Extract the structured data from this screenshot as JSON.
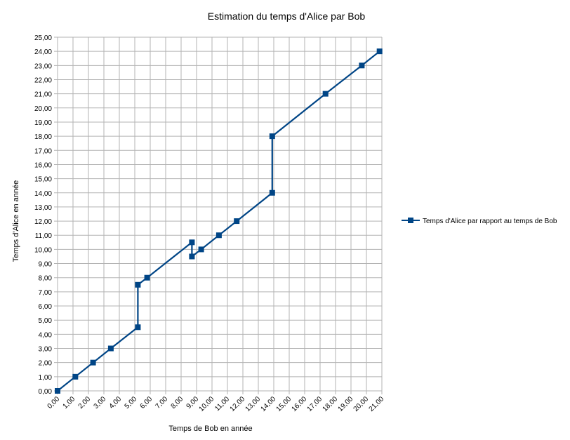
{
  "chart_data": {
    "type": "line",
    "title": "Estimation du temps d'Alice par Bob",
    "xlabel": "Temps de Bob en année",
    "ylabel": "Temps d'Alice en année",
    "xlim": [
      0,
      21
    ],
    "ylim": [
      0,
      25
    ],
    "x_ticks": [
      "0,00",
      "1,00",
      "2,00",
      "3,00",
      "4,00",
      "5,00",
      "6,00",
      "7,00",
      "8,00",
      "9,00",
      "10,00",
      "11,00",
      "12,00",
      "13,00",
      "14,00",
      "15,00",
      "16,00",
      "17,00",
      "18,00",
      "19,00",
      "20,00",
      "21,00"
    ],
    "y_ticks": [
      "0,00",
      "1,00",
      "2,00",
      "3,00",
      "4,00",
      "5,00",
      "6,00",
      "7,00",
      "8,00",
      "9,00",
      "10,00",
      "11,00",
      "12,00",
      "13,00",
      "14,00",
      "15,00",
      "16,00",
      "17,00",
      "18,00",
      "19,00",
      "20,00",
      "21,00",
      "22,00",
      "23,00",
      "24,00",
      "25,00"
    ],
    "grid": true,
    "legend_position": "right",
    "series": [
      {
        "name": "Temps d'Alice par rapport au temps de Bob",
        "color": "#004586",
        "marker": "square",
        "x": [
          0,
          1.15,
          2.3,
          3.45,
          5.2,
          5.2,
          5.8,
          8.7,
          8.7,
          9.3,
          10.45,
          11.6,
          13.9,
          13.9,
          17.35,
          19.7,
          20.85
        ],
        "y": [
          0,
          1,
          2,
          3,
          4.5,
          7.5,
          8,
          10.5,
          9.5,
          10,
          11,
          12,
          14,
          18,
          21,
          23,
          24
        ]
      }
    ]
  }
}
